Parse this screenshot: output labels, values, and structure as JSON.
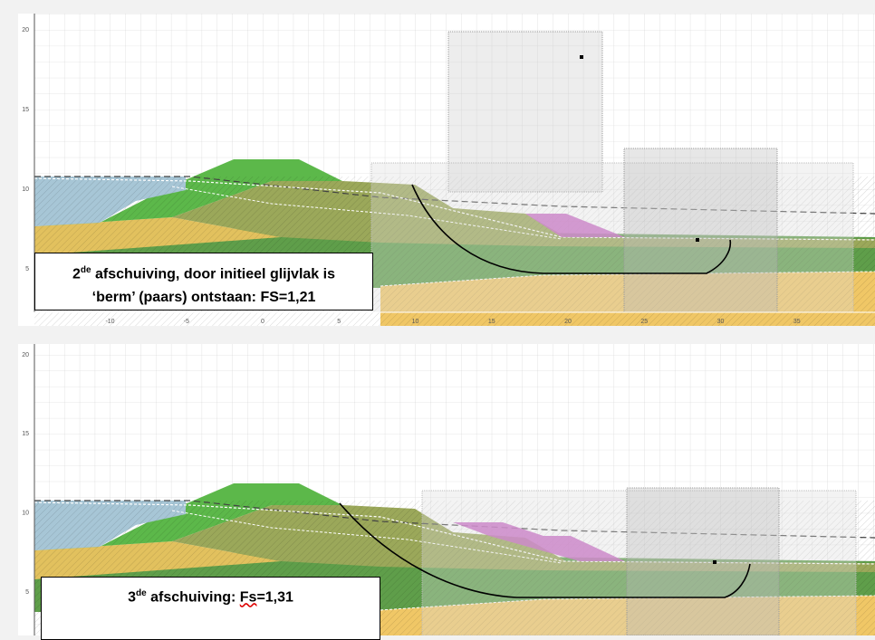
{
  "panels": [
    {
      "y_ticks": [
        20,
        15,
        10,
        5
      ],
      "x_ticks": [
        -10,
        -5,
        0,
        5,
        10,
        15,
        20,
        25,
        30,
        35
      ],
      "caption": {
        "line1": [
          "2",
          "de",
          " afschuiving, door initieel glijvlak is"
        ],
        "line2": "‘berm’ (paars) ontstaan: FS=1,21"
      }
    },
    {
      "y_ticks": [
        20,
        15,
        10,
        5
      ],
      "caption": {
        "line1": [
          "3",
          "de",
          " afschuiving: ",
          "Fs",
          "=1,31"
        ]
      }
    }
  ]
}
